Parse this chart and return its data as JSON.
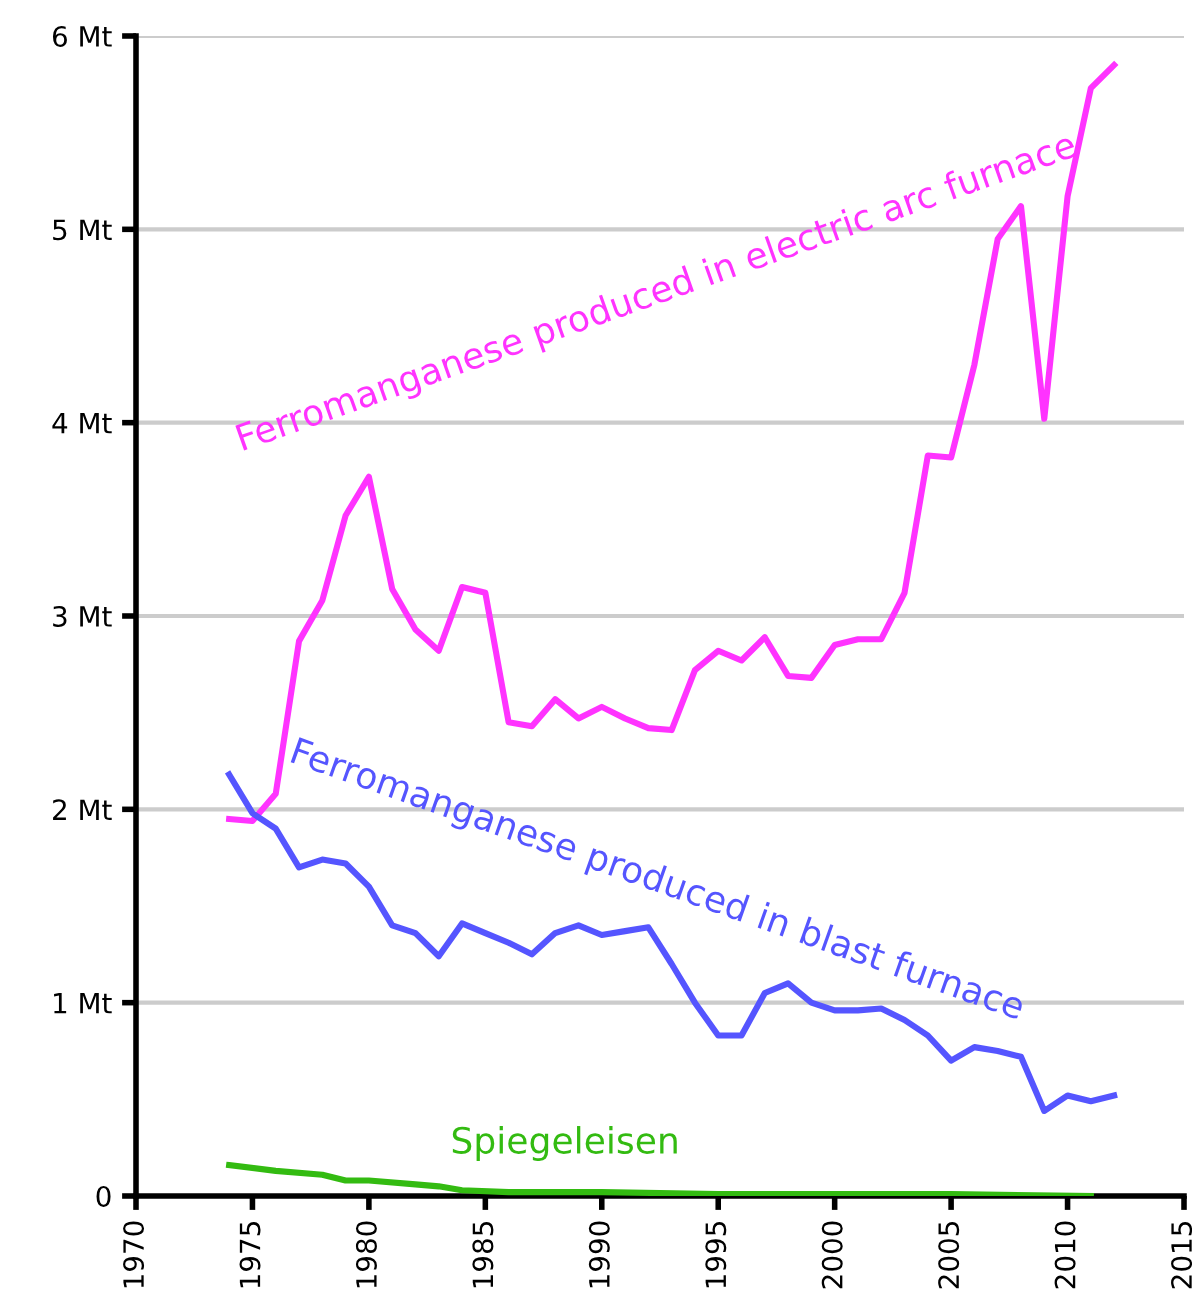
{
  "chart_data": {
    "type": "line",
    "xlim": [
      1970,
      2015
    ],
    "ylim": [
      0,
      6
    ],
    "xticks": [
      1970,
      1975,
      1980,
      1985,
      1990,
      1995,
      2000,
      2005,
      2010,
      2015
    ],
    "yticks": [
      0,
      {
        "value": 1,
        "label": "1 Mt"
      },
      {
        "value": 2,
        "label": "2 Mt"
      },
      {
        "value": 3,
        "label": "3 Mt"
      },
      {
        "value": 4,
        "label": "4 Mt"
      },
      {
        "value": 5,
        "label": "5 Mt"
      },
      {
        "value": 6,
        "label": "6 Mt"
      }
    ],
    "grid": "y",
    "legend": false,
    "marker": "none",
    "line_style": "solid",
    "series": [
      {
        "name": "Ferromanganese produced in electric arc furnace",
        "color": "#ff33ff",
        "x": [
          1974,
          1975,
          1976,
          1977,
          1978,
          1979,
          1980,
          1981,
          1982,
          1983,
          1984,
          1985,
          1986,
          1987,
          1988,
          1989,
          1990,
          1991,
          1992,
          1993,
          1994,
          1995,
          1996,
          1997,
          1998,
          1999,
          2000,
          2001,
          2002,
          2003,
          2004,
          2005,
          2006,
          2007,
          2008,
          2009,
          2010,
          2011,
          2012
        ],
        "values": [
          1.95,
          1.94,
          2.08,
          2.87,
          3.08,
          3.52,
          3.72,
          3.14,
          2.93,
          2.82,
          3.15,
          3.12,
          2.45,
          2.43,
          2.57,
          2.47,
          2.53,
          2.47,
          2.42,
          2.41,
          2.72,
          2.82,
          2.77,
          2.89,
          2.69,
          2.68,
          2.85,
          2.88,
          2.88,
          3.12,
          3.83,
          3.82,
          4.3,
          4.95,
          5.12,
          4.02,
          5.17,
          5.73,
          5.85
        ]
      },
      {
        "name": "Ferromanganese produced in blast furnace",
        "color": "#5555ff",
        "x": [
          1974,
          1975,
          1976,
          1977,
          1978,
          1979,
          1980,
          1981,
          1982,
          1983,
          1984,
          1985,
          1986,
          1987,
          1988,
          1989,
          1990,
          1991,
          1992,
          1993,
          1994,
          1995,
          1996,
          1997,
          1998,
          1999,
          2000,
          2001,
          2002,
          2003,
          2004,
          2005,
          2006,
          2007,
          2008,
          2009,
          2010,
          2011,
          2012
        ],
        "values": [
          2.18,
          1.98,
          1.9,
          1.7,
          1.74,
          1.72,
          1.6,
          1.4,
          1.36,
          1.24,
          1.41,
          1.36,
          1.31,
          1.25,
          1.36,
          1.4,
          1.35,
          1.37,
          1.39,
          1.2,
          1.0,
          0.83,
          0.83,
          1.05,
          1.1,
          1.0,
          0.96,
          0.96,
          0.97,
          0.91,
          0.83,
          0.7,
          0.77,
          0.75,
          0.72,
          0.44,
          0.52,
          0.49,
          0.52
        ]
      },
      {
        "name": "Spiegeleisen",
        "color": "#33bb11",
        "x": [
          1974,
          1976,
          1978,
          1979,
          1980,
          1982,
          1983,
          1984,
          1986,
          1990,
          1995,
          2000,
          2005,
          2011
        ],
        "values": [
          0.16,
          0.13,
          0.11,
          0.08,
          0.08,
          0.06,
          0.05,
          0.03,
          0.02,
          0.02,
          0.01,
          0.01,
          0.01,
          0.0
        ]
      }
    ]
  }
}
